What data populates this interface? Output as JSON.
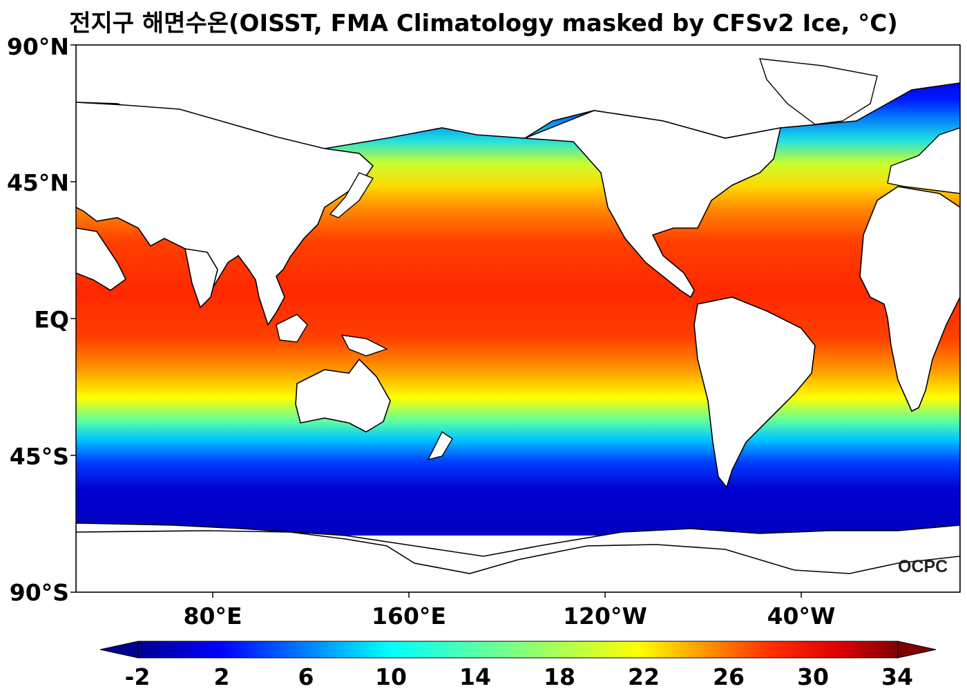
{
  "title": "전지구 해면수온(OISST, FMA Climatology masked by CFSv2 Ice, °C)",
  "lat_labels": [
    "90°N",
    "45°N",
    "EQ",
    "45°S",
    "90°S"
  ],
  "lon_labels": [
    "80°E",
    "160°E",
    "120°W",
    "40°W"
  ],
  "colorbar": {
    "ticks": [
      "-2",
      "2",
      "6",
      "10",
      "14",
      "18",
      "22",
      "26",
      "30",
      "34"
    ],
    "min": -2,
    "max": 34,
    "extend": "both",
    "colors": [
      "#00008f",
      "#0000ff",
      "#0080ff",
      "#00ffff",
      "#80ff80",
      "#ffff00",
      "#ff8000",
      "#ff0000",
      "#800000"
    ]
  },
  "logo": "OCPC",
  "map": {
    "projection": "PlateCarree, central longitude 200°",
    "land_color": "#ffffff",
    "ocean": "sea surface temperature, jet colormap"
  }
}
